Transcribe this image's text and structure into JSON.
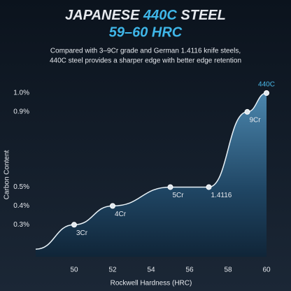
{
  "header": {
    "title_lead": "JAPANESE",
    "title_highlight": "440C",
    "title_tail": "STEEL",
    "subtitle": "59–60 HRC",
    "description": [
      "Compared with 3–9Cr grade and German 1.4116 knife steels,",
      "440C steel provides a sharper edge with better edge retention"
    ]
  },
  "chart_data": {
    "type": "area",
    "x_label": "Rockwell Hardness (HRC)",
    "y_label": "Carbon Content",
    "series": [
      {
        "name": "Carbon Content",
        "color": "#e8f2f8",
        "x": [
          48,
          50,
          52,
          55,
          57,
          59,
          60
        ],
        "values": [
          0.17,
          0.3,
          0.4,
          0.5,
          0.5,
          0.9,
          1.0
        ],
        "point_labels": [
          null,
          "3Cr",
          "4Cr",
          "5Cr",
          "1.4116",
          "9Cr",
          "440C"
        ],
        "highlight_color": "#4ab8e8"
      }
    ],
    "xlim": [
      48,
      60
    ],
    "xticks": [
      50,
      52,
      54,
      56,
      58,
      60
    ],
    "ylim": [
      0.13,
      1.0
    ],
    "yticks": [
      {
        "value": 0.3,
        "label": "0.3%"
      },
      {
        "value": 0.4,
        "label": "0.4%"
      },
      {
        "value": 0.5,
        "label": "0.5%"
      },
      {
        "value": 0.9,
        "label": "0.9%"
      },
      {
        "value": 1.0,
        "label": "1.0%"
      }
    ]
  }
}
